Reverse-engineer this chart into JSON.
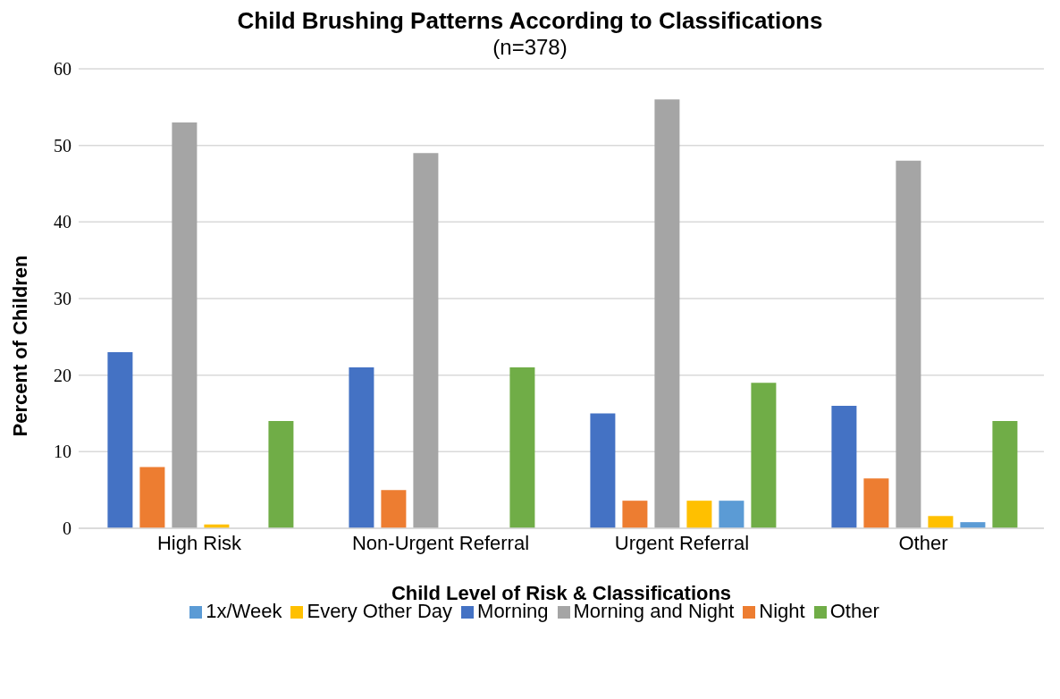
{
  "chart_data": {
    "type": "bar",
    "title": "Child Brushing Patterns According to Classifications",
    "subtitle": "(n=378)",
    "xlabel": "Child Level of Risk & Classifications",
    "ylabel": "Percent of Children",
    "categories": [
      "High Risk",
      "Non-Urgent Referral",
      "Urgent Referral",
      "Other"
    ],
    "series": [
      {
        "name": "Morning",
        "color": "#4472c4",
        "values": [
          23,
          21,
          15,
          16
        ]
      },
      {
        "name": "Night",
        "color": "#ed7d31",
        "values": [
          8,
          5,
          3.6,
          6.5
        ]
      },
      {
        "name": "Morning and Night",
        "color": "#a5a5a5",
        "values": [
          53,
          49,
          56,
          48
        ]
      },
      {
        "name": "Every Other Day",
        "color": "#ffc000",
        "values": [
          0.5,
          0,
          3.6,
          1.6
        ]
      },
      {
        "name": "1x/Week",
        "color": "#5b9bd5",
        "values": [
          0,
          0,
          3.6,
          0.8
        ]
      },
      {
        "name": "Other",
        "color": "#70ad47",
        "values": [
          14,
          21,
          19,
          14
        ]
      }
    ],
    "ylim": [
      0,
      60
    ],
    "yticks": [
      0,
      10,
      20,
      30,
      40,
      50,
      60
    ],
    "grid": "y",
    "legend": "bottom"
  }
}
